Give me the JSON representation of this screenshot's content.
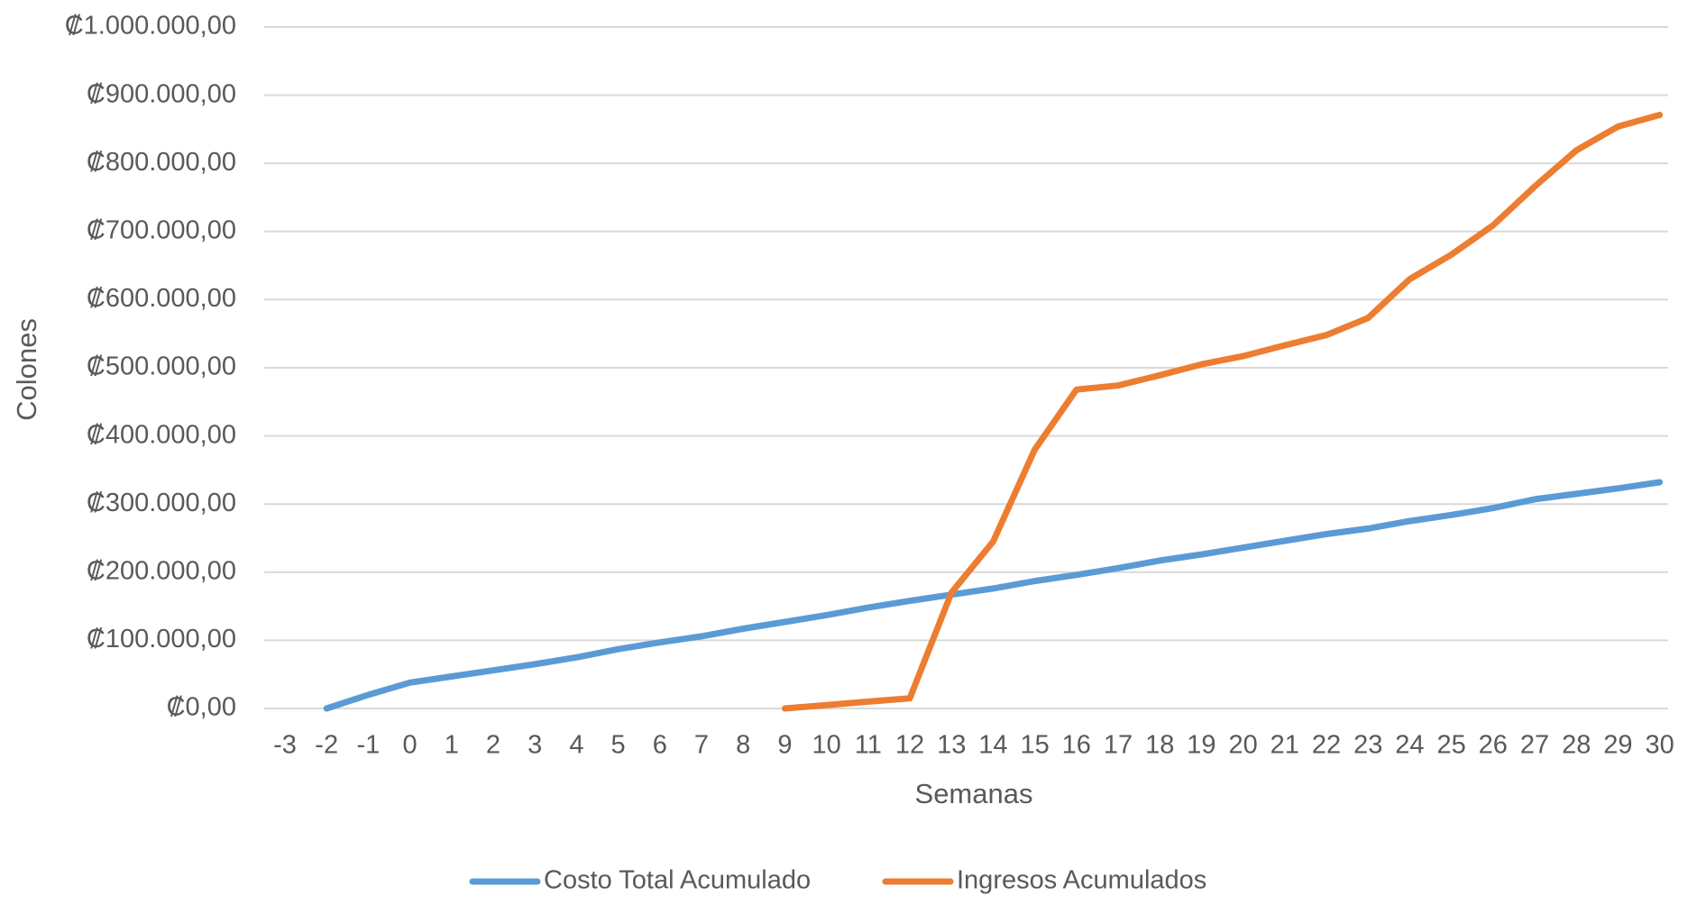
{
  "chart_data": {
    "type": "line",
    "xlabel": "Semanas",
    "ylabel": "Colones",
    "x_ticks": [
      "-3",
      "-2",
      "-1",
      "0",
      "1",
      "2",
      "3",
      "4",
      "5",
      "6",
      "7",
      "8",
      "9",
      "10",
      "11",
      "12",
      "13",
      "14",
      "15",
      "16",
      "17",
      "18",
      "19",
      "20",
      "21",
      "22",
      "23",
      "24",
      "25",
      "26",
      "27",
      "28",
      "29",
      "30"
    ],
    "y_ticks": [
      "₡0,00",
      "₡100.000,00",
      "₡200.000,00",
      "₡300.000,00",
      "₡400.000,00",
      "₡500.000,00",
      "₡600.000,00",
      "₡700.000,00",
      "₡800.000,00",
      "₡900.000,00",
      "₡1.000.000,00"
    ],
    "ylim": [
      0,
      1000000
    ],
    "grid": true,
    "legend": "bottom",
    "series": [
      {
        "name": "Costo Total Acumulado",
        "color": "#5B9BD5",
        "points": [
          [
            -2,
            0
          ],
          [
            -1,
            20000
          ],
          [
            0,
            38000
          ],
          [
            1,
            47000
          ],
          [
            2,
            56000
          ],
          [
            3,
            65000
          ],
          [
            4,
            75000
          ],
          [
            5,
            87000
          ],
          [
            6,
            97000
          ],
          [
            7,
            106000
          ],
          [
            8,
            117000
          ],
          [
            9,
            127000
          ],
          [
            10,
            137000
          ],
          [
            11,
            148000
          ],
          [
            12,
            158000
          ],
          [
            13,
            167000
          ],
          [
            14,
            176000
          ],
          [
            15,
            187000
          ],
          [
            16,
            196000
          ],
          [
            17,
            206000
          ],
          [
            18,
            217000
          ],
          [
            19,
            226000
          ],
          [
            20,
            236000
          ],
          [
            21,
            246000
          ],
          [
            22,
            256000
          ],
          [
            23,
            264000
          ],
          [
            24,
            275000
          ],
          [
            25,
            284000
          ],
          [
            26,
            294000
          ],
          [
            27,
            307000
          ],
          [
            28,
            315000
          ],
          [
            29,
            323000
          ],
          [
            30,
            332000
          ]
        ]
      },
      {
        "name": "Ingresos Acumulados",
        "color": "#ED7D31",
        "points": [
          [
            9,
            0
          ],
          [
            10,
            5000
          ],
          [
            11,
            10000
          ],
          [
            12,
            15000
          ],
          [
            13,
            170000
          ],
          [
            14,
            245000
          ],
          [
            15,
            380000
          ],
          [
            16,
            468000
          ],
          [
            17,
            474000
          ],
          [
            18,
            489000
          ],
          [
            19,
            505000
          ],
          [
            20,
            517000
          ],
          [
            21,
            533000
          ],
          [
            22,
            548000
          ],
          [
            23,
            573000
          ],
          [
            24,
            630000
          ],
          [
            25,
            666000
          ],
          [
            26,
            709000
          ],
          [
            27,
            766000
          ],
          [
            28,
            819000
          ],
          [
            29,
            854000
          ],
          [
            30,
            871000
          ]
        ]
      }
    ]
  }
}
